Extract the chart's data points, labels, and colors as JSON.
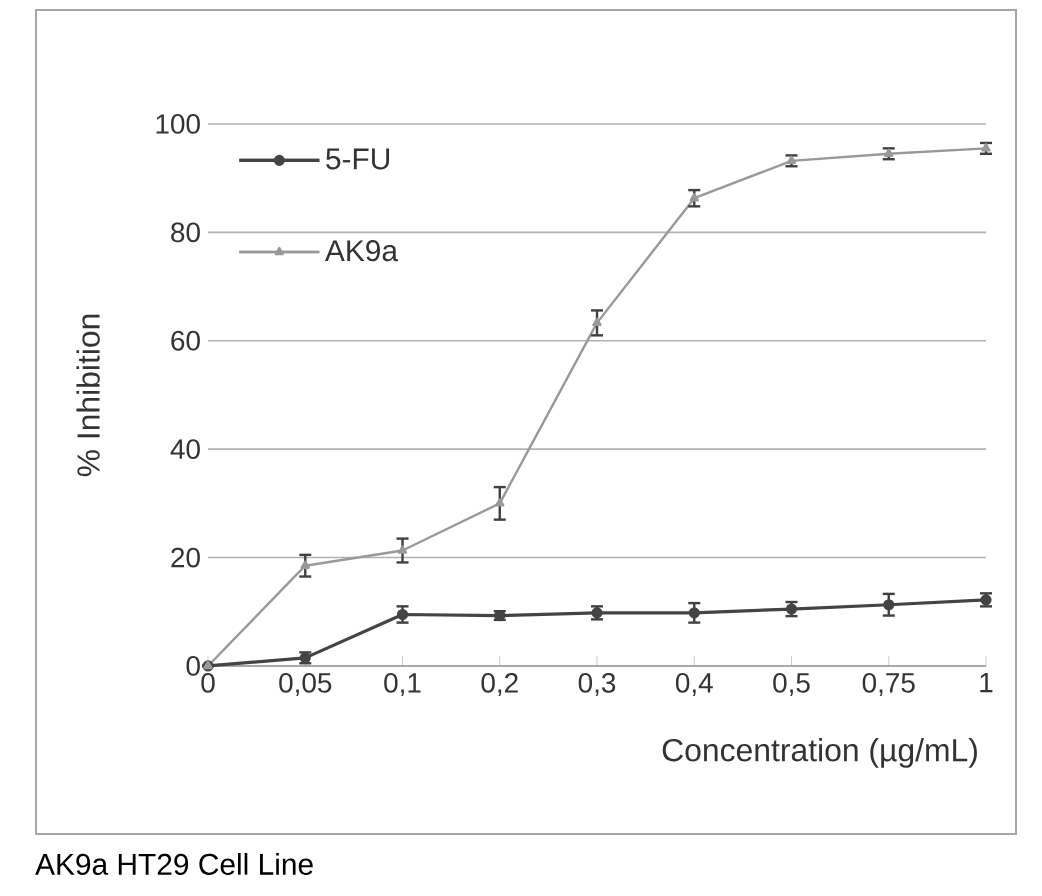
{
  "chart_data": {
    "type": "line",
    "xlabel": "Concentration (µg/mL)",
    "ylabel": "% Inhibition",
    "categories": [
      "0",
      "0,05",
      "0,1",
      "0,2",
      "0,3",
      "0,4",
      "0,5",
      "0,75",
      "1"
    ],
    "series": [
      {
        "name": "5-FU",
        "color": "#444444",
        "marker": "circle",
        "values": [
          0,
          1.5,
          9.5,
          9.3,
          9.8,
          9.8,
          10.5,
          11.3,
          12.2
        ],
        "errors": [
          null,
          1,
          1.5,
          0.8,
          1.2,
          1.8,
          1.3,
          2,
          1.2
        ]
      },
      {
        "name": "AK9a",
        "color": "#999999",
        "marker": "triangle",
        "values": [
          0,
          18.5,
          21.3,
          30,
          63.3,
          86.3,
          93.2,
          94.5,
          95.5
        ],
        "errors": [
          null,
          2,
          2.2,
          3,
          2.3,
          1.5,
          1,
          1,
          1
        ]
      }
    ],
    "ylim": [
      0,
      100
    ],
    "yticks": [
      0,
      20,
      40,
      60,
      80,
      100
    ],
    "grid": "y",
    "legend": "top left",
    "annotations": [
      "AK9a HT29 Cell Line"
    ]
  }
}
